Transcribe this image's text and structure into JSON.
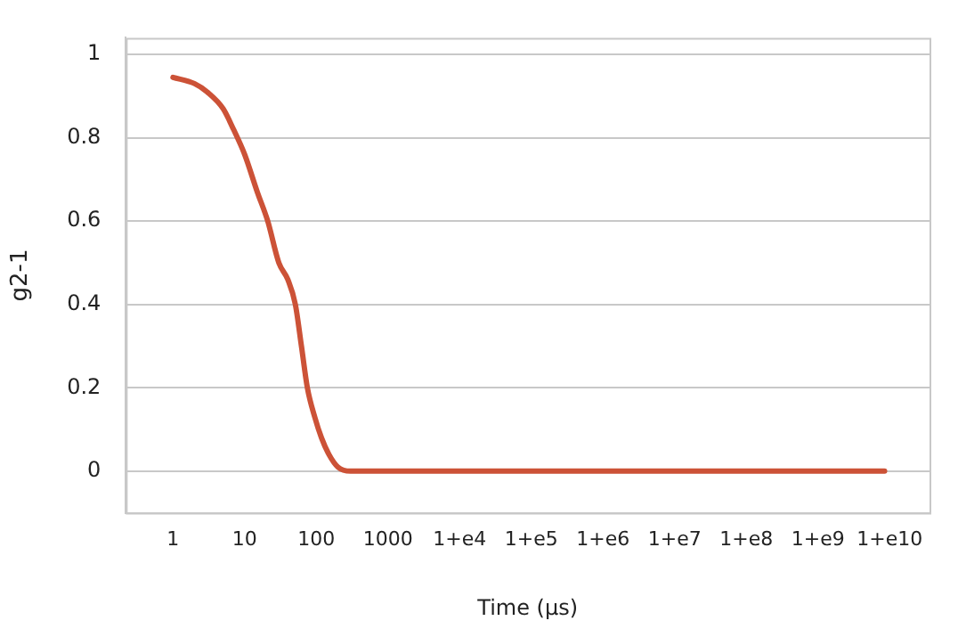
{
  "chart_data": {
    "type": "line",
    "xlabel": "Time (µs)",
    "ylabel": "g2-1",
    "log": "x",
    "grid": "y",
    "legend": false,
    "marker": "none",
    "line_style": "solid",
    "x": [
      1,
      2,
      3,
      5,
      7,
      10,
      15,
      21,
      30,
      40,
      51,
      62,
      75,
      95,
      118,
      150,
      200,
      300,
      1000,
      10000,
      100000,
      1000000,
      10000000,
      100000000,
      1000000000,
      8500000000
    ],
    "series": [
      {
        "color": "#cc5237",
        "values": [
          0.945,
          0.93,
          0.91,
          0.87,
          0.82,
          0.76,
          0.67,
          0.6,
          0.5,
          0.46,
          0.4,
          0.3,
          0.2,
          0.13,
          0.08,
          0.04,
          0.01,
          0,
          0,
          0,
          0,
          0,
          0,
          0,
          0,
          0
        ]
      }
    ],
    "xlim": [
      0.22,
      36000000000
    ],
    "xticks": [
      1,
      10,
      100,
      1000,
      {
        "value": 10000,
        "label": "1+e4"
      },
      {
        "value": 100000,
        "label": "1+e5"
      },
      {
        "value": 1000000,
        "label": "1+e6"
      },
      {
        "value": 10000000,
        "label": "1+e7"
      },
      {
        "value": 100000000,
        "label": "1+e8"
      },
      {
        "value": 1000000000,
        "label": "1+e9"
      },
      {
        "value": 10000000000,
        "label": "1+e10"
      }
    ],
    "ylim": [
      -0.1,
      1.04
    ],
    "yticks": [
      0,
      0.2,
      0.4,
      0.6,
      0.8,
      1
    ]
  }
}
